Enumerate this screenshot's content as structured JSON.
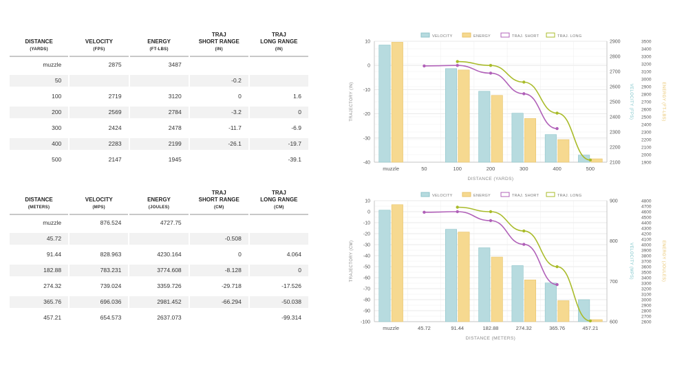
{
  "imperial_table": {
    "headers": [
      {
        "label": "DISTANCE",
        "unit": "(YARDS)"
      },
      {
        "label": "VELOCITY",
        "unit": "(FPS)"
      },
      {
        "label": "ENERGY",
        "unit": "(FT-LBS)"
      },
      {
        "label": "TRAJ\nSHORT RANGE",
        "unit": "(IN)"
      },
      {
        "label": "TRAJ\nLONG RANGE",
        "unit": "(IN)"
      }
    ],
    "rows": [
      [
        "muzzle",
        "2875",
        "3487",
        "",
        ""
      ],
      [
        "50",
        "",
        "",
        "-0.2",
        ""
      ],
      [
        "100",
        "2719",
        "3120",
        "0",
        "1.6"
      ],
      [
        "200",
        "2569",
        "2784",
        "-3.2",
        "0"
      ],
      [
        "300",
        "2424",
        "2478",
        "-11.7",
        "-6.9"
      ],
      [
        "400",
        "2283",
        "2199",
        "-26.1",
        "-19.7"
      ],
      [
        "500",
        "2147",
        "1945",
        "",
        "-39.1"
      ]
    ]
  },
  "metric_table": {
    "headers": [
      {
        "label": "DISTANCE",
        "unit": "(METERS)"
      },
      {
        "label": "VELOCITY",
        "unit": "(MPS)"
      },
      {
        "label": "ENERGY",
        "unit": "(JOULES)"
      },
      {
        "label": "TRAJ\nSHORT RANGE",
        "unit": "(CM)"
      },
      {
        "label": "TRAJ\nLONG RANGE",
        "unit": "(CM)"
      }
    ],
    "rows": [
      [
        "muzzle",
        "876.524",
        "4727.75",
        "",
        ""
      ],
      [
        "45.72",
        "",
        "",
        "-0.508",
        ""
      ],
      [
        "91.44",
        "828.963",
        "4230.164",
        "0",
        "4.064"
      ],
      [
        "182.88",
        "783.231",
        "3774.608",
        "-8.128",
        "0"
      ],
      [
        "274.32",
        "739.024",
        "3359.726",
        "-29.718",
        "-17.526"
      ],
      [
        "365.76",
        "696.036",
        "2981.452",
        "-66.294",
        "-50.038"
      ],
      [
        "457.21",
        "654.573",
        "2637.073",
        "",
        "-99.314"
      ]
    ]
  },
  "colors": {
    "velocity": "#b7dbdf",
    "velocity_edge": "#8cc3c9",
    "energy": "#f6d990",
    "energy_edge": "#e8c36a",
    "traj_short": "#b060b8",
    "traj_long": "#a9bb2a",
    "grid": "#e3e3e3",
    "axis_text": "#555555"
  },
  "chart_data": [
    {
      "type": "bar",
      "title": "",
      "xlabel": "DISTANCE (YARDS)",
      "ylabel_left": "TRAJECTORY (IN)",
      "ylabel_right_1": "VELOCITY (FPS)",
      "ylabel_right_2": "ENERGY (FT-LBS)",
      "legend": [
        "VELOCITY",
        "ENERGY",
        "TRAJ. SHORT",
        "TRAJ. LONG"
      ],
      "legend_position": "top",
      "categories": [
        "muzzle",
        "50",
        "100",
        "200",
        "300",
        "400",
        "500"
      ],
      "traj_ylim": [
        -40,
        10
      ],
      "traj_ticks": [
        10,
        0,
        -10,
        -20,
        -30,
        -40
      ],
      "velocity_ylim": [
        2100,
        2900
      ],
      "velocity_ticks": [
        2900,
        2800,
        2700,
        2600,
        2500,
        2400,
        2300,
        2200,
        2100
      ],
      "energy_ylim": [
        1900,
        3500
      ],
      "energy_ticks": [
        3500,
        3400,
        3300,
        3200,
        3100,
        3000,
        2900,
        2800,
        2700,
        2600,
        2500,
        2400,
        2300,
        2200,
        2100,
        2000,
        1900
      ],
      "series": [
        {
          "name": "VELOCITY",
          "axis": "velocity",
          "values": [
            2875,
            null,
            2719,
            2569,
            2424,
            2283,
            2147
          ]
        },
        {
          "name": "ENERGY",
          "axis": "energy",
          "values": [
            3487,
            null,
            3120,
            2784,
            2478,
            2199,
            1945
          ]
        },
        {
          "name": "TRAJ. SHORT",
          "axis": "traj",
          "values": [
            null,
            -0.2,
            0,
            -3.2,
            -11.7,
            -26.1,
            null
          ]
        },
        {
          "name": "TRAJ. LONG",
          "axis": "traj",
          "values": [
            null,
            null,
            1.6,
            0,
            -6.9,
            -19.7,
            -39.1
          ]
        }
      ]
    },
    {
      "type": "bar",
      "title": "",
      "xlabel": "DISTANCE (METERS)",
      "ylabel_left": "TRAJECTORY (CM)",
      "ylabel_right_1": "VELOCITY (MPS)",
      "ylabel_right_2": "ENERGY (JOULES)",
      "legend": [
        "VELOCITY",
        "ENERGY",
        "TRAJ. SHORT",
        "TRAJ. LONG"
      ],
      "legend_position": "top",
      "categories": [
        "muzzle",
        "45.72",
        "91.44",
        "182.88",
        "274.32",
        "365.76",
        "457.21"
      ],
      "traj_ylim": [
        -100,
        10
      ],
      "traj_ticks": [
        10,
        0,
        -10,
        -20,
        -30,
        -40,
        -50,
        -60,
        -70,
        -80,
        -90,
        -100
      ],
      "velocity_ylim": [
        600,
        900
      ],
      "velocity_ticks": [
        900,
        800,
        700,
        600
      ],
      "energy_ylim": [
        2600,
        4800
      ],
      "energy_ticks": [
        4800,
        4700,
        4600,
        4500,
        4400,
        4300,
        4200,
        4100,
        4000,
        3900,
        3800,
        3700,
        3600,
        3500,
        3400,
        3300,
        3200,
        3100,
        3000,
        2900,
        2800,
        2700,
        2600
      ],
      "series": [
        {
          "name": "VELOCITY",
          "axis": "velocity",
          "values": [
            876.524,
            null,
            828.963,
            783.231,
            739.024,
            696.036,
            654.573
          ]
        },
        {
          "name": "ENERGY",
          "axis": "energy",
          "values": [
            4727.75,
            null,
            4230.164,
            3774.608,
            3359.726,
            2981.452,
            2637.073
          ]
        },
        {
          "name": "TRAJ. SHORT",
          "axis": "traj",
          "values": [
            null,
            -0.508,
            0,
            -8.128,
            -29.718,
            -66.294,
            null
          ]
        },
        {
          "name": "TRAJ. LONG",
          "axis": "traj",
          "values": [
            null,
            null,
            4.064,
            0,
            -17.526,
            -50.038,
            -99.314
          ]
        }
      ]
    }
  ]
}
